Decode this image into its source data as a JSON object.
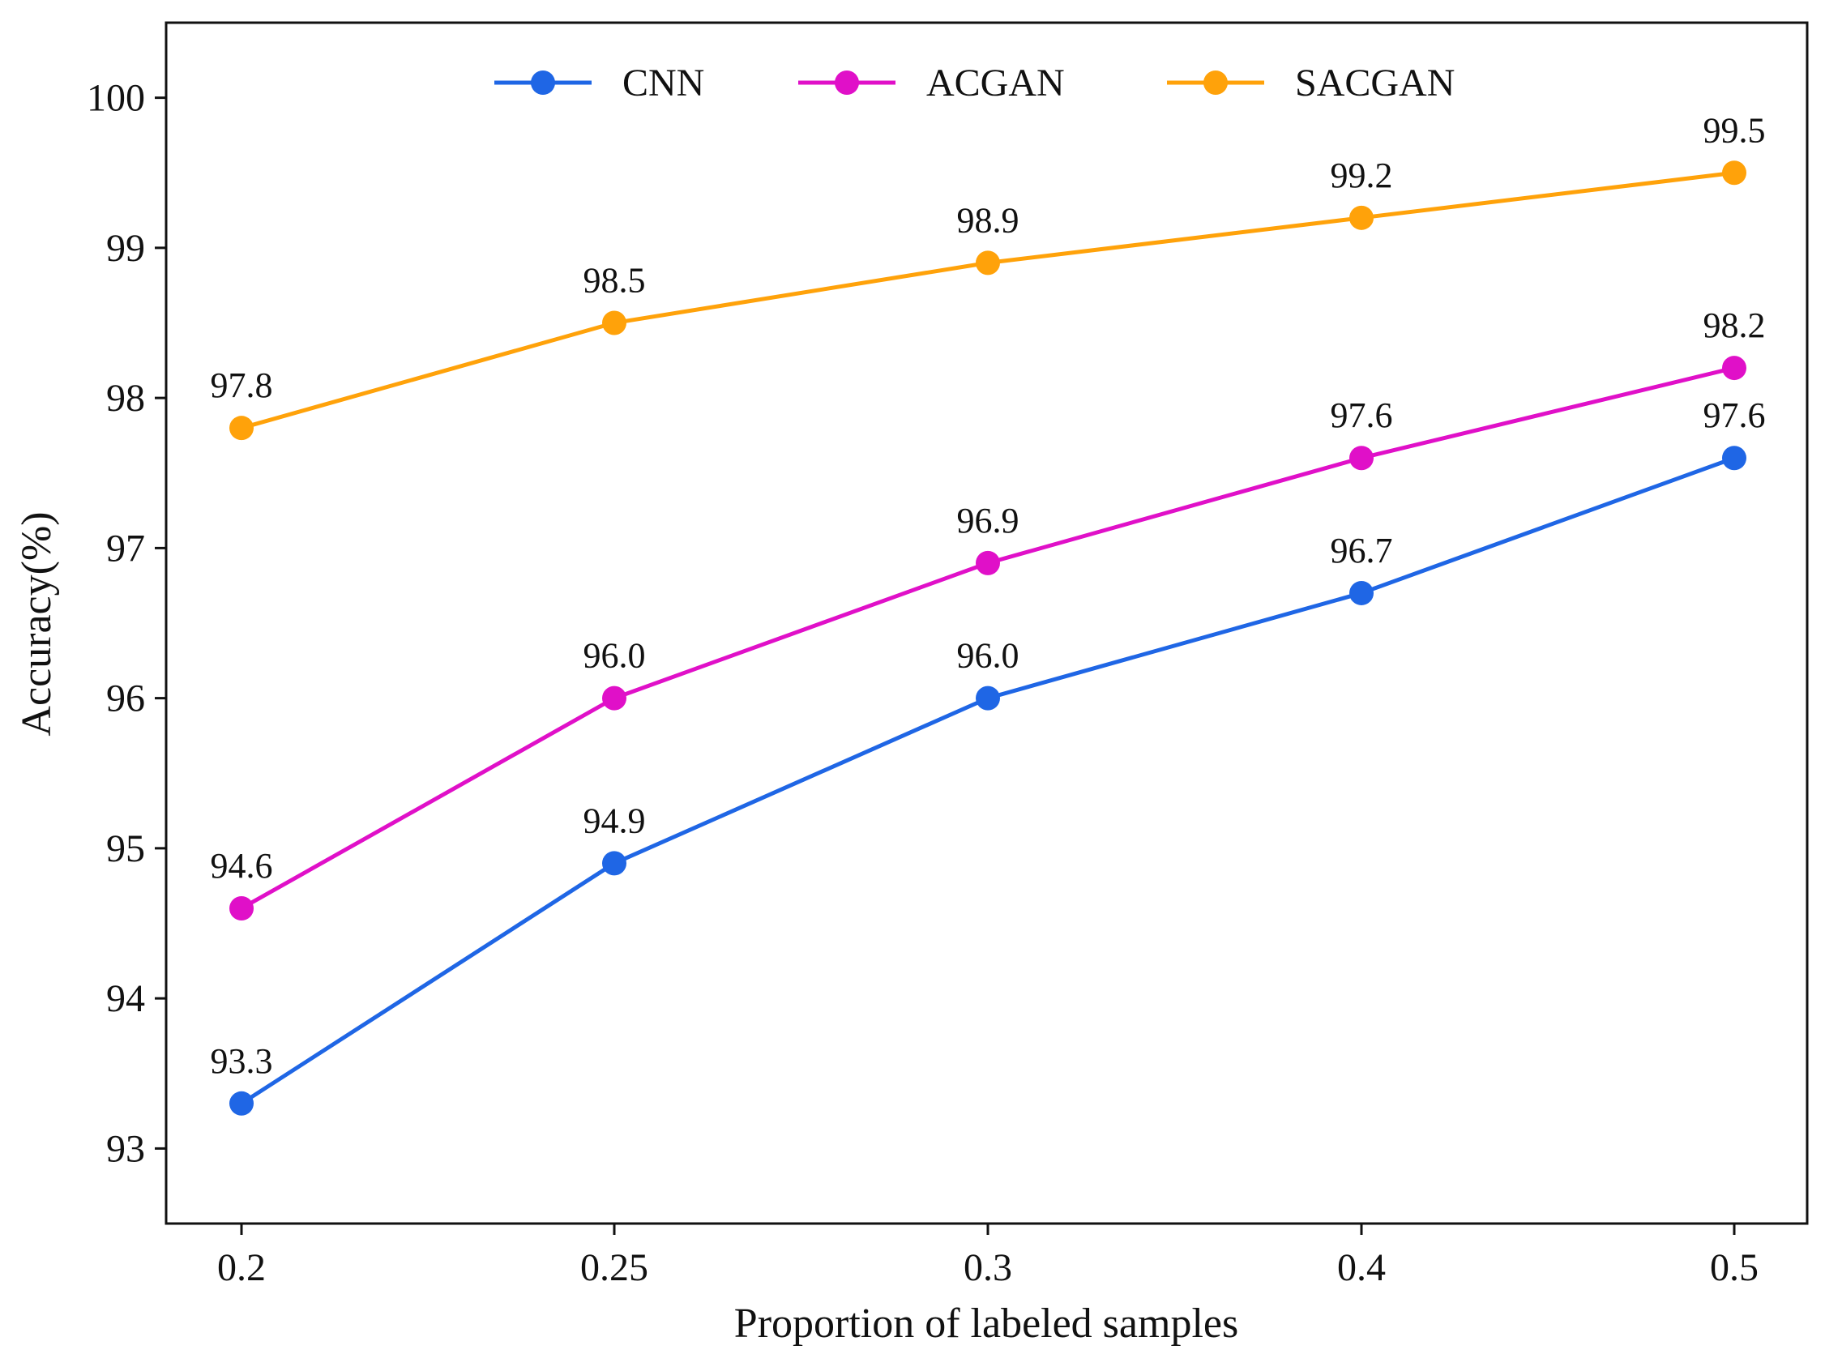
{
  "chart_data": {
    "type": "line",
    "title": "",
    "xlabel": "Proportion of labeled samples",
    "ylabel": "Accuracy(%)",
    "categories": [
      "0.2",
      "0.25",
      "0.3",
      "0.4",
      "0.5"
    ],
    "yticks": [
      "93",
      "94",
      "95",
      "96",
      "97",
      "98",
      "99",
      "100"
    ],
    "ylim": [
      92.5,
      100.5
    ],
    "grid": false,
    "legend_position": "top-center",
    "series": [
      {
        "name": "CNN",
        "color": "#1f66e5",
        "values": [
          93.3,
          94.9,
          96.0,
          96.7,
          97.6
        ],
        "labels": [
          "93.3",
          "94.9",
          "96.0",
          "96.7",
          "97.6"
        ]
      },
      {
        "name": "ACGAN",
        "color": "#e010c8",
        "values": [
          94.6,
          96.0,
          96.9,
          97.6,
          98.2
        ],
        "labels": [
          "94.6",
          "96.0",
          "96.9",
          "97.6",
          "98.2"
        ]
      },
      {
        "name": "SACGAN",
        "color": "#ffa20a",
        "values": [
          97.8,
          98.5,
          98.9,
          99.2,
          99.5
        ],
        "labels": [
          "97.8",
          "98.5",
          "98.9",
          "99.2",
          "99.5"
        ]
      }
    ]
  }
}
